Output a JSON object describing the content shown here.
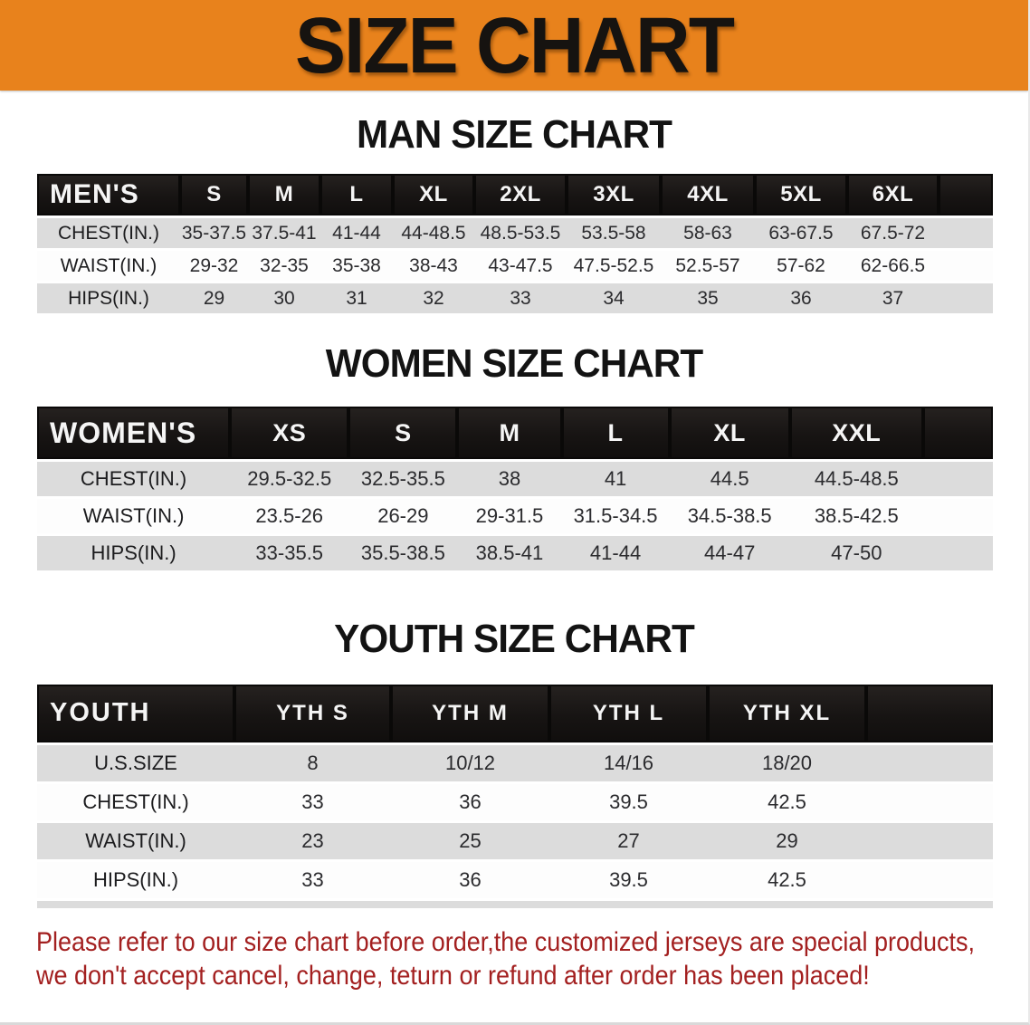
{
  "banner": {
    "title": "SIZE CHART"
  },
  "colors": {
    "banner_bg": "#e8821c",
    "header_bar": "#171413",
    "row_gray": "#dcdcdc",
    "warn_red": "#a32020"
  },
  "sections": [
    {
      "heading": "MAN SIZE CHART",
      "table": {
        "header_label": "MEN'S",
        "columns": [
          "S",
          "M",
          "L",
          "XL",
          "2XL",
          "3XL",
          "4XL",
          "5XL",
          "6XL"
        ],
        "rows": [
          {
            "label": "CHEST(IN.)",
            "values": [
              "35-37.5",
              "37.5-41",
              "41-44",
              "44-48.5",
              "48.5-53.5",
              "53.5-58",
              "58-63",
              "63-67.5",
              "67.5-72"
            ]
          },
          {
            "label": "WAIST(IN.)",
            "values": [
              "29-32",
              "32-35",
              "35-38",
              "38-43",
              "43-47.5",
              "47.5-52.5",
              "52.5-57",
              "57-62",
              "62-66.5"
            ]
          },
          {
            "label": "HIPS(IN.)",
            "values": [
              "29",
              "30",
              "31",
              "32",
              "33",
              "34",
              "35",
              "36",
              "37"
            ]
          }
        ]
      }
    },
    {
      "heading": "WOMEN SIZE CHART",
      "table": {
        "header_label": "WOMEN'S",
        "columns": [
          "XS",
          "S",
          "M",
          "L",
          "XL",
          "XXL"
        ],
        "rows": [
          {
            "label": "CHEST(IN.)",
            "values": [
              "29.5-32.5",
              "32.5-35.5",
              "38",
              "41",
              "44.5",
              "44.5-48.5"
            ]
          },
          {
            "label": "WAIST(IN.)",
            "values": [
              "23.5-26",
              "26-29",
              "29-31.5",
              "31.5-34.5",
              "34.5-38.5",
              "38.5-42.5"
            ]
          },
          {
            "label": "HIPS(IN.)",
            "values": [
              "33-35.5",
              "35.5-38.5",
              "38.5-41",
              "41-44",
              "44-47",
              "47-50"
            ]
          }
        ]
      }
    },
    {
      "heading": "YOUTH SIZE CHART",
      "table": {
        "header_label": "YOUTH",
        "columns": [
          "YTH S",
          "YTH M",
          "YTH L",
          "YTH XL"
        ],
        "rows": [
          {
            "label": "U.S.SIZE",
            "values": [
              "8",
              "10/12",
              "14/16",
              "18/20"
            ]
          },
          {
            "label": "CHEST(IN.)",
            "values": [
              "33",
              "36",
              "39.5",
              "42.5"
            ]
          },
          {
            "label": "WAIST(IN.)",
            "values": [
              "23",
              "25",
              "27",
              "29"
            ]
          },
          {
            "label": "HIPS(IN.)",
            "values": [
              "33",
              "36",
              "39.5",
              "42.5"
            ]
          }
        ]
      }
    }
  ],
  "disclaimer": {
    "line1": "Please refer to our size chart before order,the customized jerseys are special products,",
    "line2": "we don't accept cancel, change, teturn or refund after order has been placed!"
  }
}
